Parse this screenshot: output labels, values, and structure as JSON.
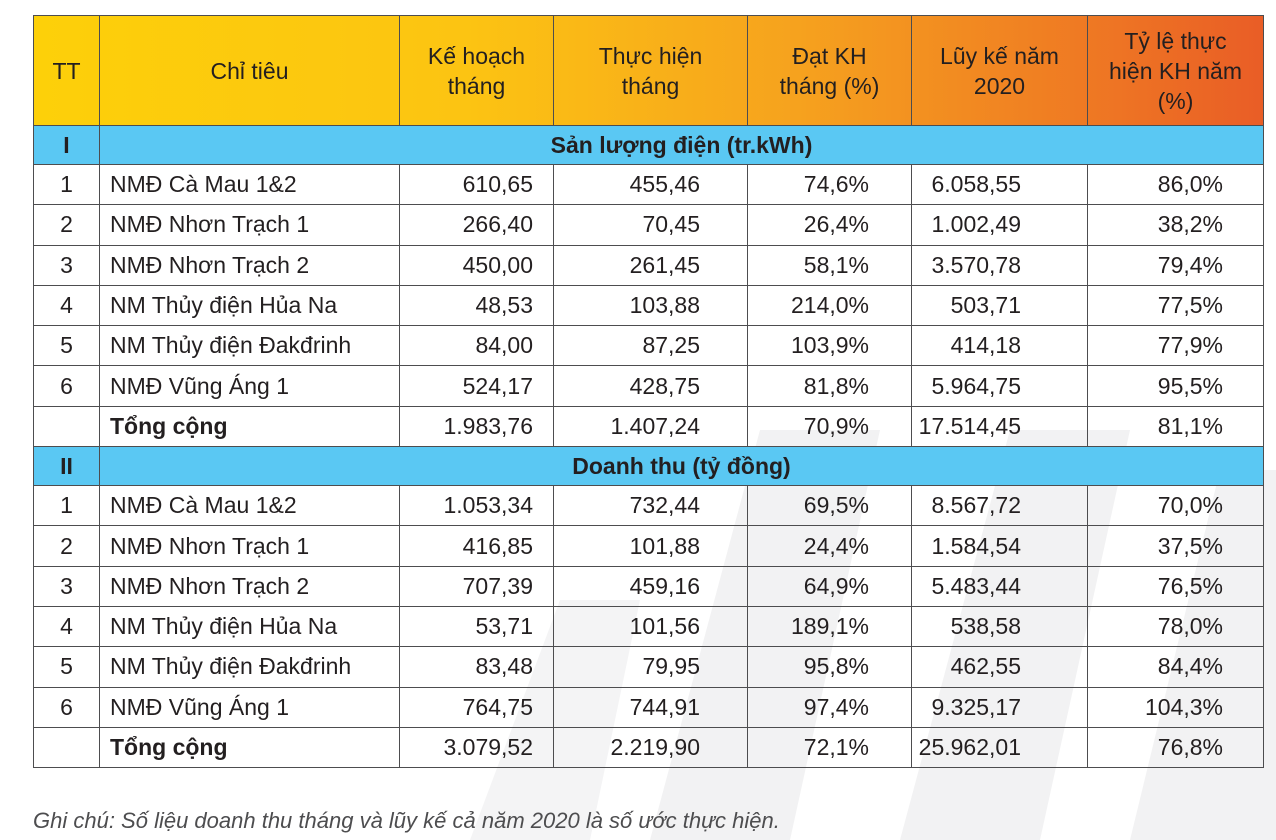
{
  "header": {
    "tt": "TT",
    "indicator": "Chỉ tiêu",
    "plan_month_l1": "Kế hoạch",
    "plan_month_l2": "tháng",
    "actual_month_l1": "Thực hiện",
    "actual_month_l2": "tháng",
    "achieved_l1": "Đạt KH",
    "achieved_l2": "tháng (%)",
    "cumulative_l1": "Lũy kế năm",
    "cumulative_l2": "2020",
    "year_rate_l1": "Tỷ lệ thực",
    "year_rate_l2": "hiện KH năm",
    "year_rate_l3": "(%)"
  },
  "sections": [
    {
      "id": "I",
      "title": "Sản lượng điện (tr.kWh)",
      "rows": [
        {
          "tt": "1",
          "name": "NMĐ Cà Mau 1&2",
          "plan": "610,65",
          "actual": "455,46",
          "pct": "74,6%",
          "cum": "6.058,55",
          "year": "86,0%"
        },
        {
          "tt": "2",
          "name": "NMĐ Nhơn Trạch 1",
          "plan": "266,40",
          "actual": "70,45",
          "pct": "26,4%",
          "cum": "1.002,49",
          "year": "38,2%"
        },
        {
          "tt": "3",
          "name": "NMĐ Nhơn Trạch 2",
          "plan": "450,00",
          "actual": "261,45",
          "pct": "58,1%",
          "cum": "3.570,78",
          "year": "79,4%"
        },
        {
          "tt": "4",
          "name": "NM Thủy điện Hủa Na",
          "plan": "48,53",
          "actual": "103,88",
          "pct": "214,0%",
          "cum": "503,71",
          "year": "77,5%"
        },
        {
          "tt": "5",
          "name": "NM Thủy điện Đakđrinh",
          "plan": "84,00",
          "actual": "87,25",
          "pct": "103,9%",
          "cum": "414,18",
          "year": "77,9%"
        },
        {
          "tt": "6",
          "name": "NMĐ Vũng Áng 1",
          "plan": "524,17",
          "actual": "428,75",
          "pct": "81,8%",
          "cum": "5.964,75",
          "year": "95,5%"
        }
      ],
      "total": {
        "name": "Tổng cộng",
        "plan": "1.983,76",
        "actual": "1.407,24",
        "pct": "70,9%",
        "cum": "17.514,45",
        "year": "81,1%"
      }
    },
    {
      "id": "II",
      "title": "Doanh thu (tỷ đồng)",
      "rows": [
        {
          "tt": "1",
          "name": "NMĐ Cà Mau 1&2",
          "plan": "1.053,34",
          "actual": "732,44",
          "pct": "69,5%",
          "cum": "8.567,72",
          "year": "70,0%"
        },
        {
          "tt": "2",
          "name": "NMĐ Nhơn Trạch 1",
          "plan": "416,85",
          "actual": "101,88",
          "pct": "24,4%",
          "cum": "1.584,54",
          "year": "37,5%"
        },
        {
          "tt": "3",
          "name": "NMĐ Nhơn Trạch 2",
          "plan": "707,39",
          "actual": "459,16",
          "pct": "64,9%",
          "cum": "5.483,44",
          "year": "76,5%"
        },
        {
          "tt": "4",
          "name": "NM Thủy điện Hủa Na",
          "plan": "53,71",
          "actual": "101,56",
          "pct": "189,1%",
          "cum": "538,58",
          "year": "78,0%"
        },
        {
          "tt": "5",
          "name": "NM Thủy điện Đakđrinh",
          "plan": "83,48",
          "actual": "79,95",
          "pct": "95,8%",
          "cum": "462,55",
          "year": "84,4%"
        },
        {
          "tt": "6",
          "name": "NMĐ Vũng Áng 1",
          "plan": "764,75",
          "actual": "744,91",
          "pct": "97,4%",
          "cum": "9.325,17",
          "year": "104,3%"
        }
      ],
      "total": {
        "name": "Tổng cộng",
        "plan": "3.079,52",
        "actual": "2.219,90",
        "pct": "72,1%",
        "cum": "25.962,01",
        "year": "76,8%"
      }
    }
  ],
  "note": "Ghi chú: Số liệu doanh thu tháng và lũy kế cả năm 2020 là số ước thực hiện.",
  "colors": {
    "header_gradient_start": "#fdd009",
    "header_gradient_end": "#e95d26",
    "section_band": "#5ac8f3",
    "border": "#4d4d4f",
    "watermark": "#f1f1f2"
  }
}
